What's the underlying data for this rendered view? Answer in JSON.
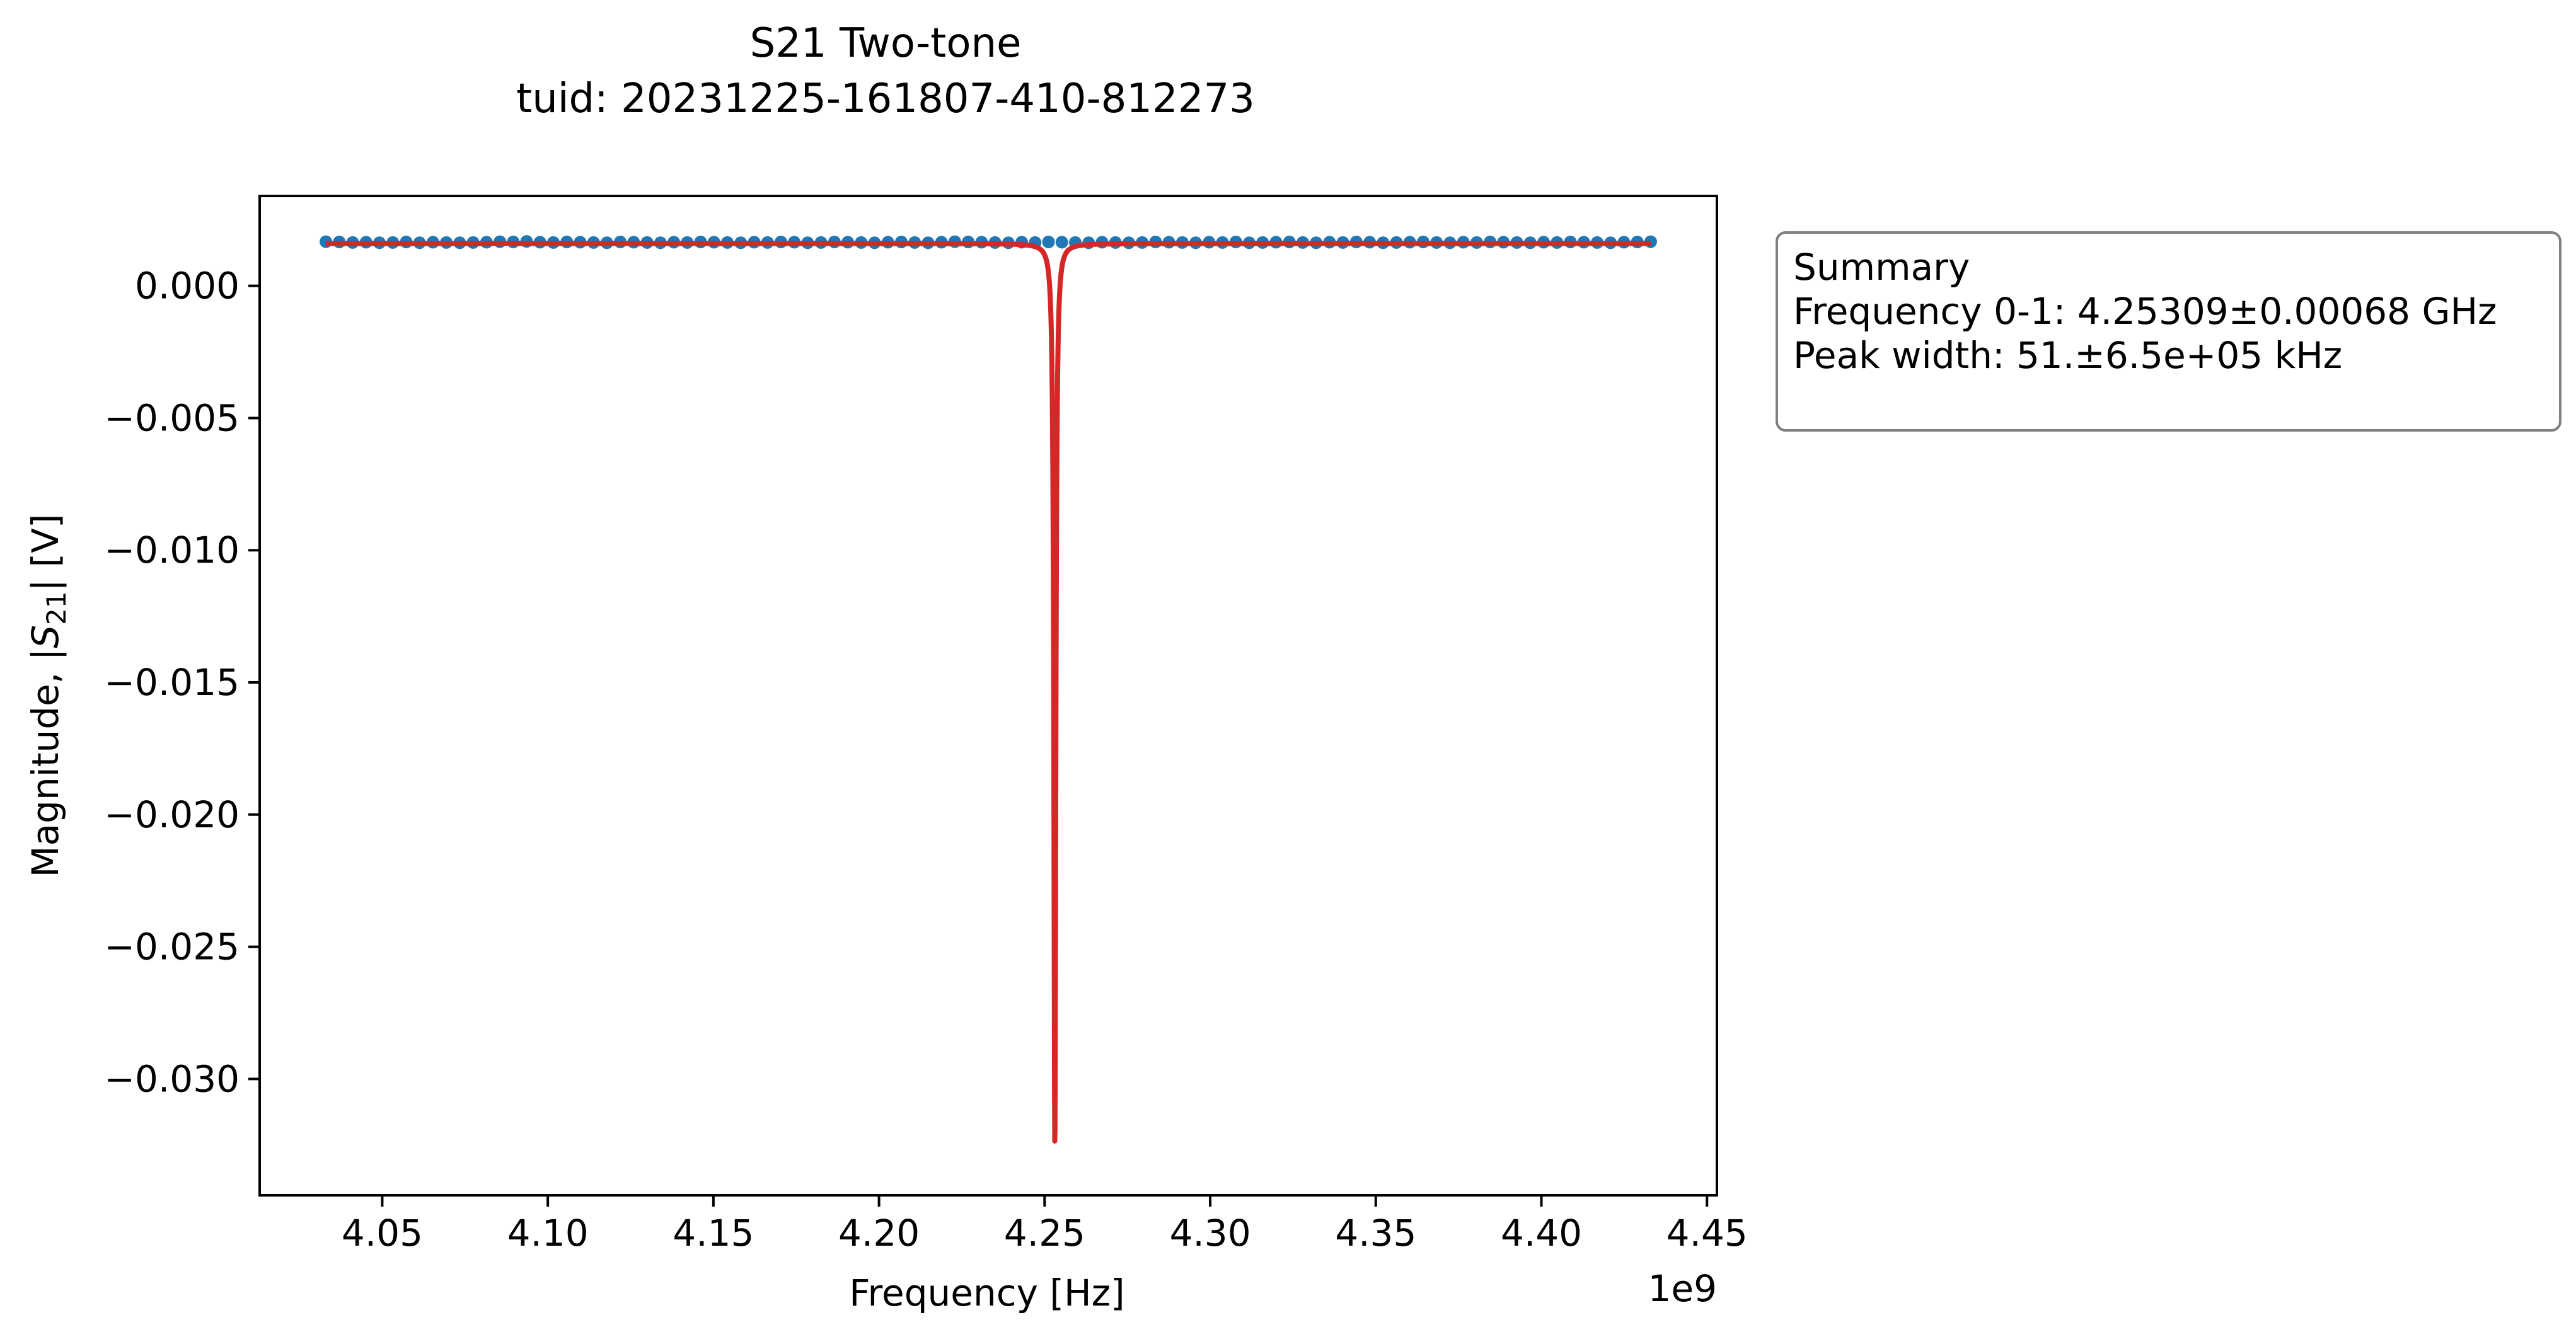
{
  "chart_data": {
    "type": "line",
    "title": "S21 Two-tone",
    "subtitle": "tuid: 20231225-161807-410-812273",
    "xlabel": "Frequency [Hz]",
    "ylabel_prefix": "Magnitude, |",
    "ylabel_symbol": "S",
    "ylabel_sub": "21",
    "ylabel_suffix": "| [V]",
    "x_offset_label": "1e9",
    "xlim": [
      4.013,
      4.453
    ],
    "ylim": [
      -0.0344,
      0.0034
    ],
    "xticks": [
      4.05,
      4.1,
      4.15,
      4.2,
      4.25,
      4.3,
      4.35,
      4.4,
      4.45
    ],
    "xtick_labels": [
      "4.05",
      "4.10",
      "4.15",
      "4.20",
      "4.25",
      "4.30",
      "4.35",
      "4.40",
      "4.45"
    ],
    "yticks": [
      0.0,
      -0.005,
      -0.01,
      -0.015,
      -0.02,
      -0.025,
      -0.03
    ],
    "ytick_labels": [
      "0.000",
      "−0.005",
      "−0.010",
      "−0.015",
      "−0.020",
      "−0.025",
      "−0.030"
    ],
    "grid": false,
    "colors": {
      "data": "#1f77b4",
      "fit": "#d62728",
      "box_border": "#808080"
    },
    "series": [
      {
        "role": "data",
        "marker": "circle",
        "x_start": 4.033,
        "x_end": 4.433,
        "count": 100,
        "y_values": [
          0.00167,
          0.00166,
          0.00164,
          0.00165,
          0.00163,
          0.00164,
          0.00166,
          0.00163,
          0.00165,
          0.00164,
          0.00163,
          0.00164,
          0.00165,
          0.00167,
          0.00166,
          0.00168,
          0.00165,
          0.00164,
          0.00166,
          0.00165,
          0.00164,
          0.00163,
          0.00166,
          0.00165,
          0.00164,
          0.00163,
          0.00165,
          0.00164,
          0.00166,
          0.00165,
          0.00164,
          0.00163,
          0.00165,
          0.00164,
          0.00166,
          0.00165,
          0.00163,
          0.00164,
          0.00166,
          0.00165,
          0.00164,
          0.00163,
          0.00165,
          0.00166,
          0.00164,
          0.00163,
          0.00165,
          0.00167,
          0.00166,
          0.00165,
          0.00164,
          0.00163,
          0.00165,
          0.00164,
          0.00166,
          0.00165,
          0.00164,
          0.00163,
          0.00165,
          0.00164,
          0.00163,
          0.00164,
          0.00166,
          0.00165,
          0.00164,
          0.00163,
          0.00165,
          0.00164,
          0.00166,
          0.00163,
          0.00164,
          0.00165,
          0.00166,
          0.00164,
          0.00163,
          0.00165,
          0.00164,
          0.00166,
          0.00165,
          0.00163,
          0.00164,
          0.00165,
          0.00166,
          0.00164,
          0.00163,
          0.00165,
          0.00164,
          0.00166,
          0.00165,
          0.00164,
          0.00163,
          0.00165,
          0.00164,
          0.00166,
          0.00165,
          0.00164,
          0.00163,
          0.00165,
          0.00166,
          0.00167
        ]
      },
      {
        "role": "fit",
        "baseline": 0.0016,
        "x_start": 4.033,
        "x_end": 4.433,
        "dip_center": 4.25309,
        "dip_min": -0.0325,
        "dip_width_ghz": 0.0007
      }
    ]
  },
  "summary": {
    "title": "Summary",
    "frequency_line": "Frequency 0-1: 4.25309±0.00068 GHz",
    "width_line": "Peak width: 51.±6.5e+05 kHz"
  }
}
